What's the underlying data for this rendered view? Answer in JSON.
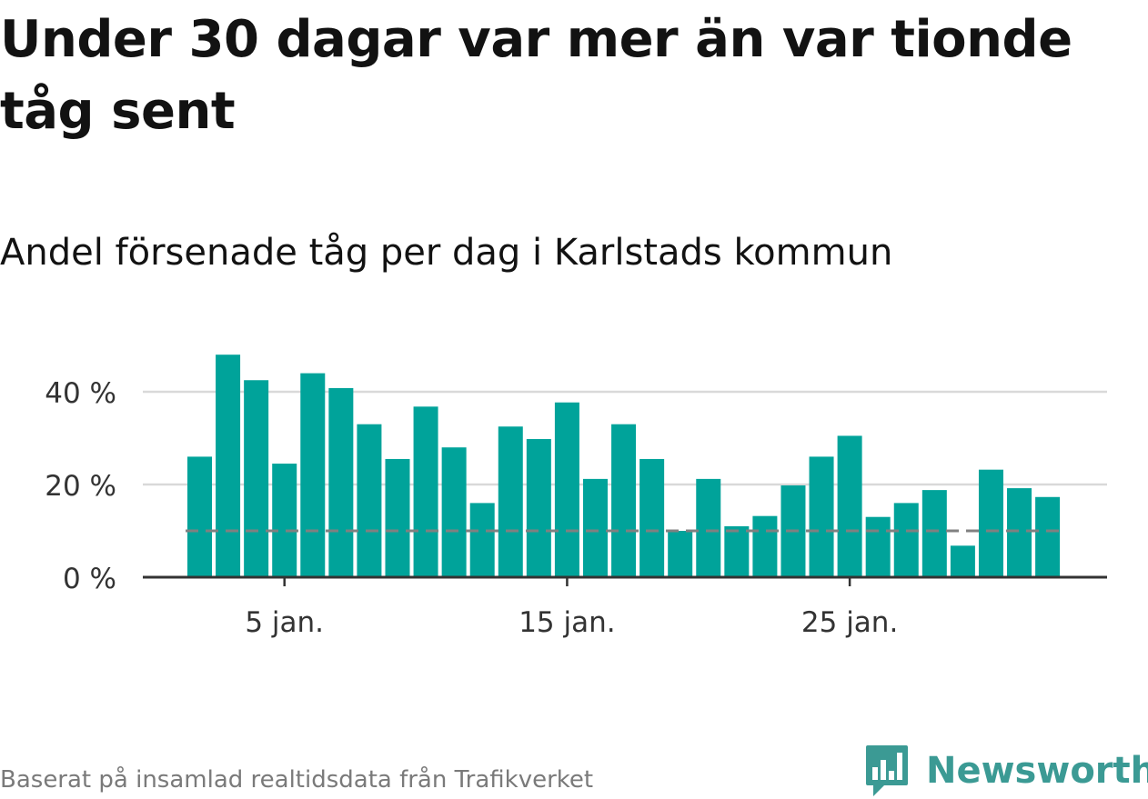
{
  "title": "Under 30 dagar var mer än var tionde tåg sent",
  "subtitle": "Andel försenade tåg per dag i Karlstads kommun",
  "footer": "Baserat på insamlad realtidsdata från Trafikverket",
  "brand": {
    "name": "Newsworthy",
    "color": "#3b9a94",
    "icon": "bar-chart-speech-bubble-icon"
  },
  "colors": {
    "bar": "#00a39a",
    "reference_line": "#808080",
    "grid": "#d9d9d9",
    "axis": "#333333"
  },
  "chart_data": {
    "type": "bar",
    "x": [
      2,
      3,
      4,
      5,
      6,
      7,
      8,
      9,
      10,
      11,
      12,
      13,
      14,
      15,
      16,
      17,
      18,
      19,
      20,
      21,
      22,
      23,
      24,
      25,
      26,
      27,
      28,
      29,
      30,
      31,
      32
    ],
    "values": [
      26,
      48,
      42.5,
      24.5,
      44,
      40.8,
      33,
      25.5,
      36.8,
      28,
      16,
      32.5,
      29.8,
      37.7,
      21.2,
      33,
      25.5,
      10,
      21.2,
      11,
      13.2,
      19.8,
      26,
      30.5,
      13,
      16,
      18.8,
      6.8,
      23.2,
      19.2,
      17.3
    ],
    "xticks": [
      {
        "value": 5,
        "label": "5 jan."
      },
      {
        "value": 15,
        "label": "15 jan."
      },
      {
        "value": 25,
        "label": "25 jan."
      }
    ],
    "yticks": [
      {
        "value": 0,
        "label": "0 %"
      },
      {
        "value": 20,
        "label": "20 %"
      },
      {
        "value": 40,
        "label": "40 %"
      }
    ],
    "ylim": [
      0,
      50
    ],
    "reference_line": 10,
    "grid": true,
    "xlabel": "",
    "ylabel": ""
  }
}
